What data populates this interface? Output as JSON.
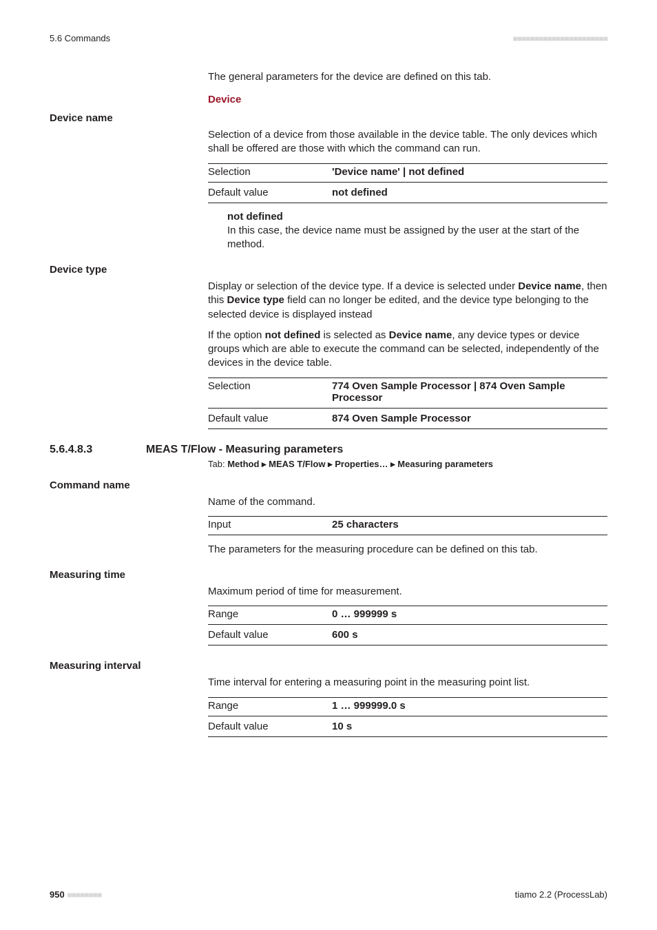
{
  "header": {
    "left": "5.6 Commands",
    "dots": "■■■■■■■■■■■■■■■■■■■■■■"
  },
  "intro": "The general parameters for the device are defined on this tab.",
  "device_section_label": "Device",
  "device_name": {
    "title": "Device name",
    "desc": "Selection of a device from those available in the device table. The only devices which shall be offered are those with which the command can run.",
    "rows": [
      {
        "k": "Selection",
        "v": "'Device name' | not defined"
      },
      {
        "k": "Default value",
        "v": "not defined"
      }
    ],
    "subdef": {
      "title": "not defined",
      "body": "In this case, the device name must be assigned by the user at the start of the method."
    }
  },
  "device_type": {
    "title": "Device type",
    "desc1_a": "Display or selection of the device type. If a device is selected under ",
    "desc1_b": "Device name",
    "desc1_c": ", then this ",
    "desc1_d": "Device type",
    "desc1_e": " field can no longer be edited, and the device type belonging to the selected device is displayed instead",
    "desc2_a": "If the option ",
    "desc2_b": "not defined",
    "desc2_c": " is selected as ",
    "desc2_d": "Device name",
    "desc2_e": ", any device types or device groups which are able to execute the command can be selected, independently of the devices in the device table.",
    "rows": [
      {
        "k": "Selection",
        "v": "774 Oven Sample Processor | 874 Oven Sample Processor"
      },
      {
        "k": "Default value",
        "v": "874 Oven Sample Processor"
      }
    ]
  },
  "h3": {
    "num": "5.6.4.8.3",
    "title": "MEAS T/Flow - Measuring parameters",
    "tab_prefix": "Tab: ",
    "tab_path": "Method ▸ MEAS T/Flow ▸ Properties… ▸ Measuring parameters"
  },
  "command_name": {
    "title": "Command name",
    "desc": "Name of the command.",
    "rows": [
      {
        "k": "Input",
        "v": "25 characters"
      }
    ],
    "note": "The parameters for the measuring procedure can be defined on this tab."
  },
  "measuring_time": {
    "title": "Measuring time",
    "desc": "Maximum period of time for measurement.",
    "rows": [
      {
        "k": "Range",
        "v": "0 … 999999 s"
      },
      {
        "k": "Default value",
        "v": "600 s"
      }
    ]
  },
  "measuring_interval": {
    "title": "Measuring interval",
    "desc": "Time interval for entering a measuring point in the measuring point list.",
    "rows": [
      {
        "k": "Range",
        "v": "1 … 999999.0 s"
      },
      {
        "k": "Default value",
        "v": "10 s"
      }
    ]
  },
  "footer": {
    "page": "950",
    "dots": "■■■■■■■■",
    "right": "tiamo 2.2 (ProcessLab)"
  }
}
